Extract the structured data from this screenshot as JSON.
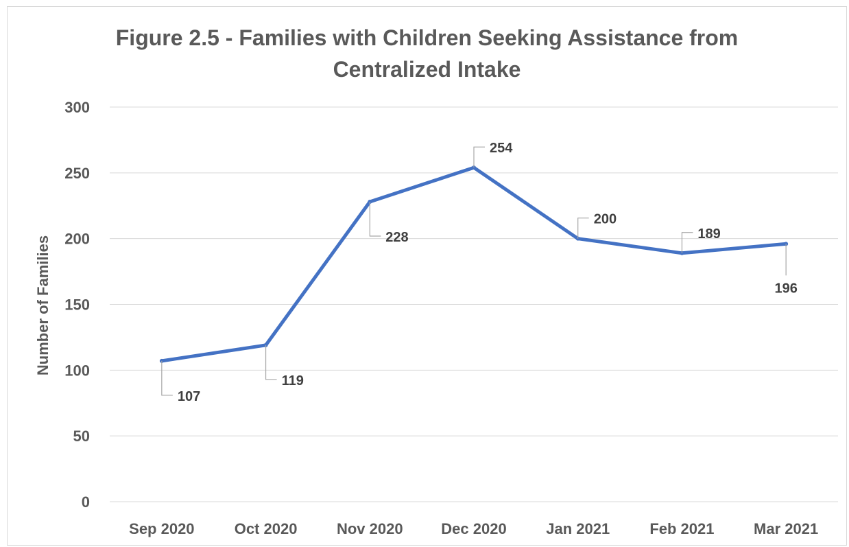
{
  "chart_data": {
    "type": "line",
    "title": "Figure 2.5 - Families with Children Seeking Assistance from Centralized Intake",
    "title_lines": [
      "Figure 2.5 - Families with Children Seeking Assistance from",
      "Centralized Intake"
    ],
    "xlabel": "",
    "ylabel": "Number of Families",
    "categories": [
      "Sep 2020",
      "Oct 2020",
      "Nov 2020",
      "Dec 2020",
      "Jan 2021",
      "Feb 2021",
      "Mar 2021"
    ],
    "series": [
      {
        "values": [
          107,
          119,
          228,
          254,
          200,
          189,
          196
        ]
      }
    ],
    "y_ticks": [
      0,
      50,
      100,
      150,
      200,
      250,
      300
    ],
    "ylim": [
      0,
      300
    ],
    "grid": true,
    "legend": "none",
    "data_label_placement": [
      "below-right",
      "below-right",
      "below-right",
      "above-right",
      "above-right",
      "above-right",
      "below"
    ],
    "colors": {
      "series": "#4472c4",
      "grid": "#d9d9d9",
      "text": "#595959",
      "label": "#404040",
      "leader": "#a6a6a6"
    }
  }
}
